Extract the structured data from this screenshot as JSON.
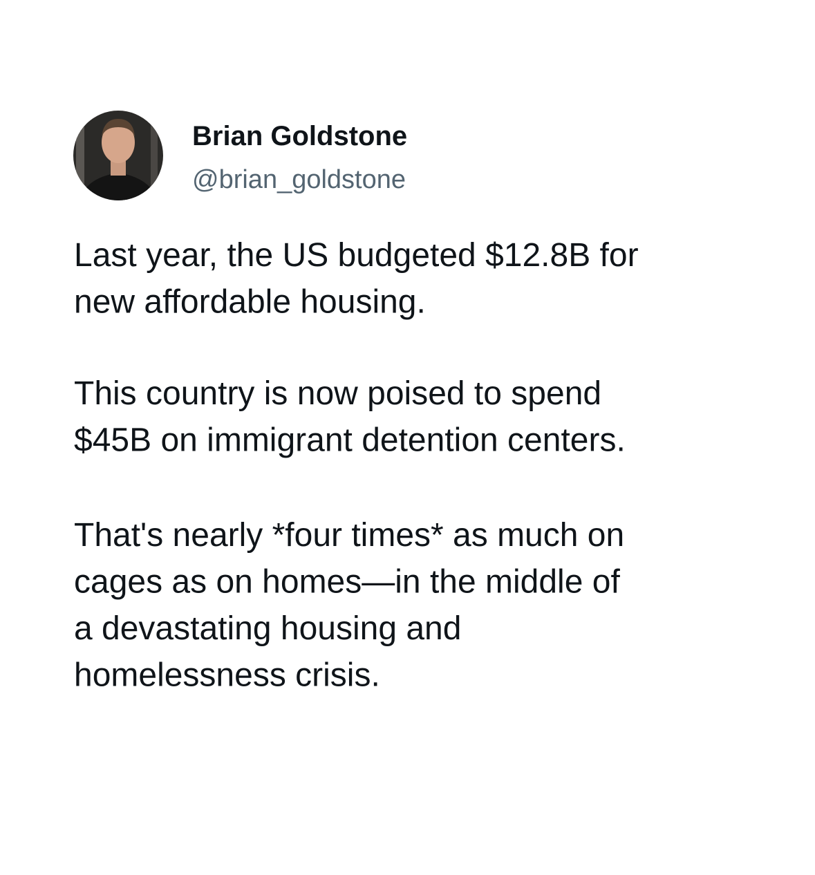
{
  "author": {
    "name": "Brian Goldstone",
    "handle": "@brian_goldstone"
  },
  "paragraphs": [
    [
      "Last year, the US budgeted $12.8B for",
      "new affordable housing."
    ],
    [
      "This country is now poised to spend",
      "$45B on immigrant detention centers."
    ],
    [
      "That's nearly *four times* as much on",
      "cages as on homes—in the middle of",
      "a devastating housing and",
      "homelessness crisis."
    ]
  ]
}
